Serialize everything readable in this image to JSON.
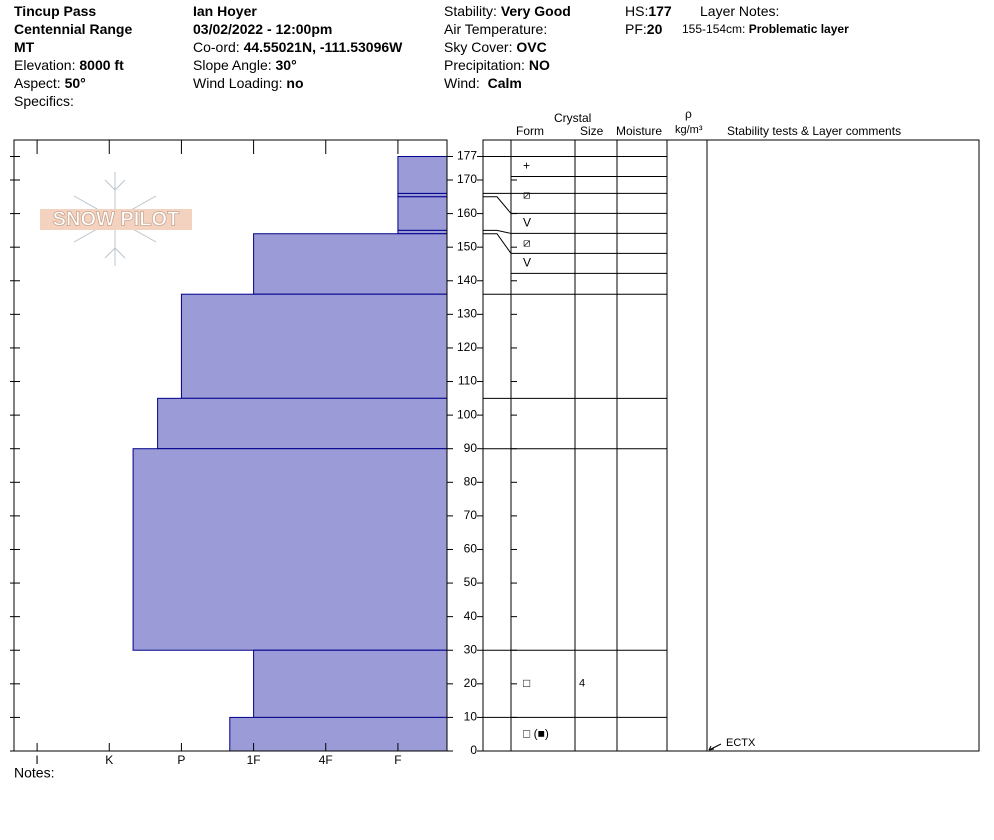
{
  "header": {
    "columns": [
      [
        {
          "value": "Tincup Pass"
        },
        {
          "value": "Centennial Range"
        },
        {
          "value": "MT"
        },
        {
          "label": "Elevation: ",
          "value": "8000 ft"
        },
        {
          "label": "Aspect: ",
          "value": "50°"
        },
        {
          "label": "Specifics:"
        }
      ],
      [
        {
          "value": "Ian Hoyer"
        },
        {
          "value": "03/02/2022 - 12:00pm"
        },
        {
          "label": "Co-ord: ",
          "value": "44.55021N, -111.53096W"
        },
        {
          "label": "Slope Angle: ",
          "value": "30°"
        },
        {
          "label": "Wind Loading: ",
          "value": "no"
        }
      ],
      [
        {
          "label": "Stability: ",
          "value": "Very Good"
        },
        {
          "label": "Air Temperature:"
        },
        {
          "label": "Sky Cover: ",
          "value": "OVC"
        },
        {
          "label": "Precipitation: ",
          "value": "NO"
        },
        {
          "label": "Wind:  ",
          "value": "Calm"
        }
      ],
      [
        {
          "label": "HS:",
          "value": "177"
        },
        {
          "label": "PF:",
          "value": "20"
        }
      ],
      [
        {
          "label": "Layer Notes:"
        },
        {
          "label": "155-154cm: ",
          "value": "Problematic layer"
        }
      ]
    ],
    "notes": "Notes:",
    "logo": "SNOW PILOT"
  },
  "table_headers": {
    "crystal": "Crystal",
    "form": "Form",
    "size": "Size",
    "moisture": "Moisture",
    "rho": "ρ",
    "density_unit": "kg/m³",
    "comments": "Stability tests & Layer comments"
  },
  "chart_data": {
    "type": "snow-profile",
    "ylim": [
      0,
      177
    ],
    "yticks": [
      0,
      10,
      20,
      30,
      40,
      50,
      60,
      70,
      80,
      90,
      100,
      110,
      120,
      130,
      140,
      150,
      160,
      170,
      177
    ],
    "xlim": [
      0.32,
      6.32
    ],
    "xticks": [
      {
        "value": 6,
        "label": "I"
      },
      {
        "value": 5,
        "label": "K"
      },
      {
        "value": 4,
        "label": "P"
      },
      {
        "value": 3,
        "label": "1F"
      },
      {
        "value": 2,
        "label": "4F"
      },
      {
        "value": 1,
        "label": "F"
      }
    ],
    "color": "#9b9bd7",
    "edge_color": "#00008b",
    "layers": [
      {
        "top": 177,
        "bottom": 166,
        "hardness": 1,
        "form": "+"
      },
      {
        "top": 166,
        "bottom": 165,
        "hardness": 1,
        "form": "⧄"
      },
      {
        "top": 165,
        "bottom": 155,
        "hardness": 1,
        "form": "V"
      },
      {
        "top": 155,
        "bottom": 154,
        "hardness": 1,
        "form": "⧄"
      },
      {
        "top": 154,
        "bottom": 136,
        "hardness": 3,
        "form": "V"
      },
      {
        "top": 136,
        "bottom": 105,
        "hardness": 4
      },
      {
        "top": 105,
        "bottom": 90,
        "hardness": 4.33
      },
      {
        "top": 90,
        "bottom": 30,
        "hardness": 4.67
      },
      {
        "top": 30,
        "bottom": 10,
        "hardness": 3,
        "form": "□",
        "size": "4"
      },
      {
        "top": 10,
        "bottom": 0,
        "hardness": 3.33,
        "form": "□ (■)"
      }
    ],
    "tests": [
      {
        "label": "ECTX",
        "depth": 0
      }
    ]
  }
}
